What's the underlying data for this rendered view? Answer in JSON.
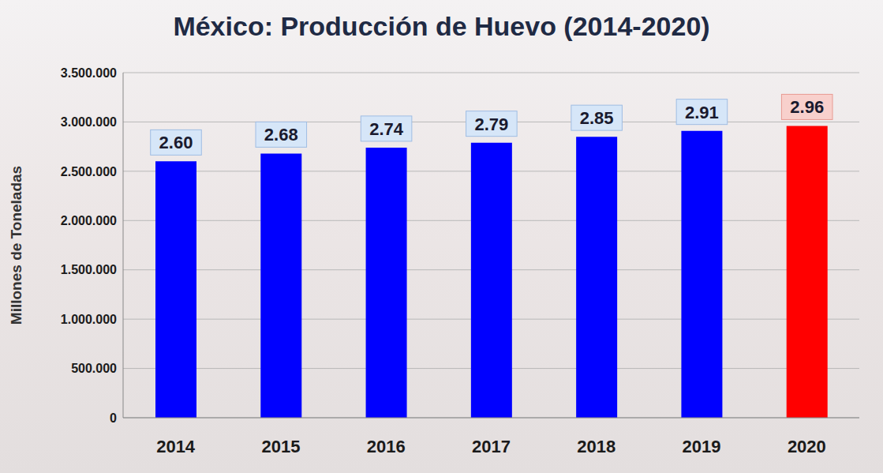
{
  "chart_data": {
    "type": "bar",
    "title": "México: Producción de Huevo (2014-2020)",
    "y_label": "Millones de Toneladas",
    "categories": [
      "2014",
      "2015",
      "2016",
      "2017",
      "2018",
      "2019",
      "2020"
    ],
    "values": [
      2600000,
      2680000,
      2740000,
      2790000,
      2850000,
      2910000,
      2960000
    ],
    "value_labels": [
      "2.60",
      "2.68",
      "2.74",
      "2.79",
      "2.85",
      "2.91",
      "2.96"
    ],
    "colors": [
      "#0000ff",
      "#0000ff",
      "#0000ff",
      "#0000ff",
      "#0000ff",
      "#0000ff",
      "#ff0000"
    ],
    "ylim": [
      0,
      3500000
    ],
    "yticks": [
      0,
      {
        "value": 500000,
        "label": "500.000"
      },
      {
        "value": 1000000,
        "label": "1.000.000"
      },
      {
        "value": 1500000,
        "label": "1.500.000"
      },
      {
        "value": 2000000,
        "label": "2.000.000"
      },
      {
        "value": 2500000,
        "label": "2.500.000"
      },
      {
        "value": 3000000,
        "label": "3.000.000"
      },
      {
        "value": 3500000,
        "label": "3.500.000"
      }
    ],
    "grid": true,
    "data_labels": true
  }
}
